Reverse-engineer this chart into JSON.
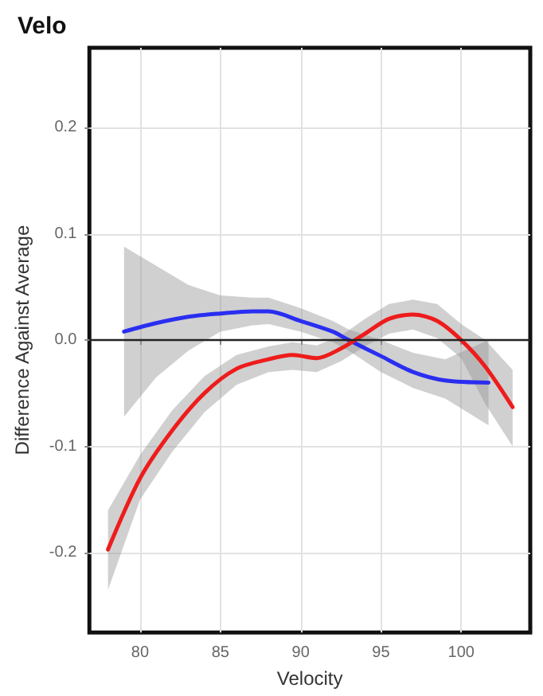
{
  "chart_data": {
    "type": "line",
    "title": "Velo",
    "xlabel": "Velocity",
    "ylabel": "Difference Against Average",
    "xlim": [
      76.84,
      104.3
    ],
    "ylim": [
      -0.275,
      0.275
    ],
    "xticks": [
      80,
      85,
      90,
      95,
      100
    ],
    "yticks": [
      -0.2,
      -0.1,
      {
        "value": 0,
        "label": "0.0"
      },
      0.1,
      0.2
    ],
    "grid": true,
    "marker": "none",
    "line_style": "solid",
    "ref_lines": [
      {
        "axis": "y",
        "value": 0,
        "color": "#222222",
        "line_style": "solid"
      }
    ],
    "series": [
      {
        "color": "#2a2ef0",
        "x": [
          79,
          81,
          83,
          85,
          87,
          88,
          90,
          92,
          93,
          95,
          97,
          99,
          101.7
        ],
        "values": [
          0.008,
          0.016,
          0.022,
          0.025,
          0.027,
          0.027,
          0.018,
          0.008,
          0.0,
          -0.015,
          -0.03,
          -0.038,
          -0.04
        ],
        "lower": [
          -0.072,
          -0.035,
          -0.01,
          0.008,
          0.014,
          0.015,
          0.008,
          -0.002,
          -0.01,
          -0.03,
          -0.045,
          -0.055,
          -0.08
        ],
        "upper": [
          0.088,
          0.07,
          0.052,
          0.042,
          0.04,
          0.04,
          0.03,
          0.018,
          0.01,
          0.0,
          -0.012,
          -0.018,
          0.0
        ]
      },
      {
        "color": "#ee1c1c",
        "x": [
          78,
          80,
          82,
          84,
          86,
          88,
          89.5,
          91,
          92.5,
          94,
          95.5,
          97,
          98.5,
          100,
          101.5,
          103.2
        ],
        "values": [
          -0.197,
          -0.13,
          -0.085,
          -0.05,
          -0.027,
          -0.018,
          -0.014,
          -0.017,
          -0.008,
          0.006,
          0.02,
          0.024,
          0.018,
          0.0,
          -0.025,
          -0.063
        ],
        "lower": [
          -0.235,
          -0.15,
          -0.105,
          -0.068,
          -0.042,
          -0.03,
          -0.028,
          -0.03,
          -0.02,
          -0.006,
          0.006,
          0.01,
          0.002,
          -0.017,
          -0.06,
          -0.1
        ],
        "upper": [
          -0.16,
          -0.108,
          -0.066,
          -0.034,
          -0.014,
          -0.006,
          -0.002,
          -0.005,
          0.004,
          0.02,
          0.034,
          0.038,
          0.034,
          0.015,
          0.0,
          -0.028
        ]
      }
    ]
  }
}
